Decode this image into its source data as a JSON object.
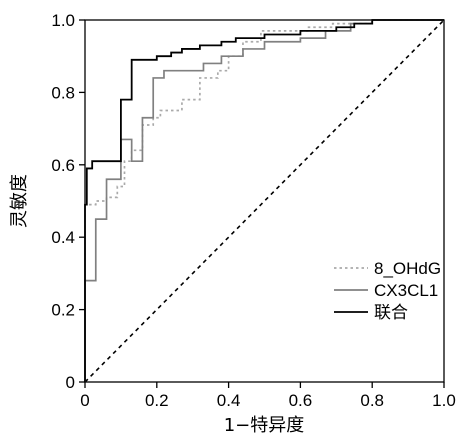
{
  "chart_data": {
    "type": "line",
    "title": "",
    "xlabel": "1−特异度",
    "ylabel": "灵敏度",
    "xlim": [
      0,
      1
    ],
    "ylim": [
      0,
      1
    ],
    "x_ticks": [
      "0",
      "0.2",
      "0.4",
      "0.6",
      "0.8",
      "1.0"
    ],
    "y_ticks": [
      "0",
      "0.2",
      "0.4",
      "0.6",
      "0.8",
      "1.0"
    ],
    "grid": false,
    "legend_position": "bottom-right",
    "reference_line": {
      "style": "dashed",
      "from": [
        0,
        0
      ],
      "to": [
        1,
        1
      ]
    },
    "series": [
      {
        "name": "8_OHdG",
        "style": "dotted",
        "color": "#aaaaaa",
        "points": [
          [
            0,
            0
          ],
          [
            0,
            0.49
          ],
          [
            0.03,
            0.49
          ],
          [
            0.03,
            0.5
          ],
          [
            0.06,
            0.5
          ],
          [
            0.06,
            0.51
          ],
          [
            0.09,
            0.51
          ],
          [
            0.09,
            0.54
          ],
          [
            0.11,
            0.54
          ],
          [
            0.11,
            0.61
          ],
          [
            0.13,
            0.61
          ],
          [
            0.13,
            0.64
          ],
          [
            0.16,
            0.64
          ],
          [
            0.16,
            0.71
          ],
          [
            0.19,
            0.71
          ],
          [
            0.19,
            0.73
          ],
          [
            0.21,
            0.73
          ],
          [
            0.21,
            0.75
          ],
          [
            0.27,
            0.75
          ],
          [
            0.27,
            0.78
          ],
          [
            0.32,
            0.78
          ],
          [
            0.32,
            0.84
          ],
          [
            0.37,
            0.84
          ],
          [
            0.37,
            0.86
          ],
          [
            0.4,
            0.86
          ],
          [
            0.4,
            0.9
          ],
          [
            0.44,
            0.9
          ],
          [
            0.44,
            0.94
          ],
          [
            0.49,
            0.94
          ],
          [
            0.49,
            0.97
          ],
          [
            0.62,
            0.97
          ],
          [
            0.62,
            0.98
          ],
          [
            0.69,
            0.98
          ],
          [
            0.69,
            0.99
          ],
          [
            0.8,
            0.99
          ],
          [
            0.8,
            1.0
          ],
          [
            1.0,
            1.0
          ]
        ]
      },
      {
        "name": "CX3CL1",
        "style": "solid",
        "color": "#808080",
        "points": [
          [
            0,
            0
          ],
          [
            0,
            0.28
          ],
          [
            0.03,
            0.28
          ],
          [
            0.03,
            0.45
          ],
          [
            0.06,
            0.45
          ],
          [
            0.06,
            0.56
          ],
          [
            0.1,
            0.56
          ],
          [
            0.1,
            0.67
          ],
          [
            0.13,
            0.67
          ],
          [
            0.13,
            0.61
          ],
          [
            0.16,
            0.61
          ],
          [
            0.16,
            0.73
          ],
          [
            0.19,
            0.73
          ],
          [
            0.19,
            0.84
          ],
          [
            0.22,
            0.84
          ],
          [
            0.22,
            0.86
          ],
          [
            0.33,
            0.86
          ],
          [
            0.33,
            0.88
          ],
          [
            0.38,
            0.88
          ],
          [
            0.38,
            0.9
          ],
          [
            0.44,
            0.9
          ],
          [
            0.44,
            0.92
          ],
          [
            0.5,
            0.92
          ],
          [
            0.5,
            0.94
          ],
          [
            0.6,
            0.94
          ],
          [
            0.6,
            0.95
          ],
          [
            0.67,
            0.95
          ],
          [
            0.67,
            0.97
          ],
          [
            0.74,
            0.97
          ],
          [
            0.74,
            0.99
          ],
          [
            0.8,
            0.99
          ],
          [
            0.8,
            1.0
          ],
          [
            1.0,
            1.0
          ]
        ]
      },
      {
        "name": "联合",
        "style": "solid",
        "color": "#000000",
        "points": [
          [
            0,
            0
          ],
          [
            0,
            0.49
          ],
          [
            0.005,
            0.49
          ],
          [
            0.005,
            0.59
          ],
          [
            0.02,
            0.59
          ],
          [
            0.02,
            0.61
          ],
          [
            0.1,
            0.61
          ],
          [
            0.1,
            0.78
          ],
          [
            0.13,
            0.78
          ],
          [
            0.13,
            0.89
          ],
          [
            0.2,
            0.89
          ],
          [
            0.2,
            0.9
          ],
          [
            0.24,
            0.9
          ],
          [
            0.24,
            0.91
          ],
          [
            0.27,
            0.91
          ],
          [
            0.27,
            0.92
          ],
          [
            0.32,
            0.92
          ],
          [
            0.32,
            0.93
          ],
          [
            0.38,
            0.93
          ],
          [
            0.38,
            0.94
          ],
          [
            0.42,
            0.94
          ],
          [
            0.42,
            0.95
          ],
          [
            0.5,
            0.95
          ],
          [
            0.5,
            0.96
          ],
          [
            0.6,
            0.96
          ],
          [
            0.6,
            0.97
          ],
          [
            0.7,
            0.97
          ],
          [
            0.7,
            0.98
          ],
          [
            0.75,
            0.98
          ],
          [
            0.75,
            0.99
          ],
          [
            0.8,
            0.99
          ],
          [
            0.8,
            1.0
          ],
          [
            1.0,
            1.0
          ]
        ]
      }
    ]
  }
}
